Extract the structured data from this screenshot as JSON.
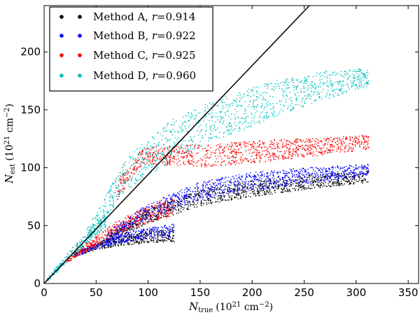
{
  "chart_data": {
    "type": "scatter",
    "title": "",
    "xlabel": {
      "symbol": "N",
      "subscript": "true",
      "unit_prefix": "(10",
      "unit_power": "21",
      "unit_mid": " cm",
      "unit_power2": "−2",
      "unit_suffix": ")"
    },
    "ylabel": {
      "symbol": "N",
      "subscript": "est",
      "unit_prefix": "(10",
      "unit_power": "21",
      "unit_mid": " cm",
      "unit_power2": "−2",
      "unit_suffix": ")"
    },
    "xlim": [
      0,
      360
    ],
    "ylim": [
      0,
      240
    ],
    "xticks": [
      0,
      50,
      100,
      150,
      200,
      250,
      300,
      350
    ],
    "yticks": [
      0,
      50,
      100,
      150,
      200
    ],
    "xtick_labels": [
      "0",
      "50",
      "100",
      "150",
      "200",
      "250",
      "300",
      "350"
    ],
    "ytick_labels": [
      "0",
      "50",
      "100",
      "150",
      "200"
    ],
    "grid": false,
    "legend": {
      "position": "top-left"
    },
    "series": [
      {
        "name": "Method A, r=0.914",
        "label_text": "Method A, ",
        "stat_symbol": "r",
        "stat_value": "=0.914",
        "color": "#000000",
        "branches": [
          {
            "x": [
              28,
              50,
              75,
              100,
              125
            ],
            "y": [
              24,
              32,
              37,
              40,
              42
            ],
            "spread": [
              2,
              3,
              4,
              5,
              6
            ]
          },
          {
            "x": [
              60,
              100,
              150,
              200,
              250,
              312
            ],
            "y": [
              38,
              58,
              74,
              82,
              87,
              92
            ],
            "spread": [
              4,
              6,
              7,
              7,
              6,
              5
            ]
          }
        ]
      },
      {
        "name": "Method B, r=0.922",
        "label_text": "Method B, ",
        "stat_symbol": "r",
        "stat_value": "=0.922",
        "color": "#0000ff",
        "branches": [
          {
            "x": [
              30,
              55,
              80,
              105,
              125
            ],
            "y": [
              25,
              34,
              40,
              44,
              46
            ],
            "spread": [
              2,
              3,
              4,
              5,
              6
            ]
          },
          {
            "x": [
              60,
              100,
              150,
              200,
              250,
              312
            ],
            "y": [
              40,
              62,
              80,
              88,
              93,
              98
            ],
            "spread": [
              4,
              7,
              8,
              8,
              7,
              5
            ]
          }
        ]
      },
      {
        "name": "Method C, r=0.925",
        "label_text": "Method C, ",
        "stat_symbol": "r",
        "stat_value": "=0.925",
        "color": "#ff0000",
        "branches": [
          {
            "x": [
              22,
              45,
              70,
              95,
              125
            ],
            "y": [
              20,
              34,
              48,
              58,
              66
            ],
            "spread": [
              2,
              4,
              6,
              7,
              8
            ]
          },
          {
            "x": [
              70,
              95,
              150,
              200,
              250,
              312
            ],
            "y": [
              80,
              110,
              110,
              114,
              117,
              122
            ],
            "spread": [
              8,
              7,
              10,
              10,
              8,
              6
            ]
          }
        ]
      },
      {
        "name": "Method D, r=0.960",
        "label_text": "Method D, ",
        "stat_symbol": "r",
        "stat_value": "=0.960",
        "color": "#00bfbf",
        "branches": [
          {
            "x": [
              2,
              15,
              30,
              45,
              60
            ],
            "y": [
              2,
              15,
              30,
              42,
              55
            ],
            "spread": [
              1,
              3,
              4,
              5,
              6
            ]
          },
          {
            "x": [
              40,
              80,
              125,
              175,
              225,
              275,
              312
            ],
            "y": [
              40,
              95,
              125,
              145,
              160,
              172,
              178
            ],
            "spread": [
              6,
              14,
              18,
              18,
              16,
              12,
              8
            ]
          }
        ]
      }
    ],
    "reference_line": {
      "x": [
        0,
        255
      ],
      "y": [
        0,
        240
      ],
      "color": "#000000"
    }
  }
}
